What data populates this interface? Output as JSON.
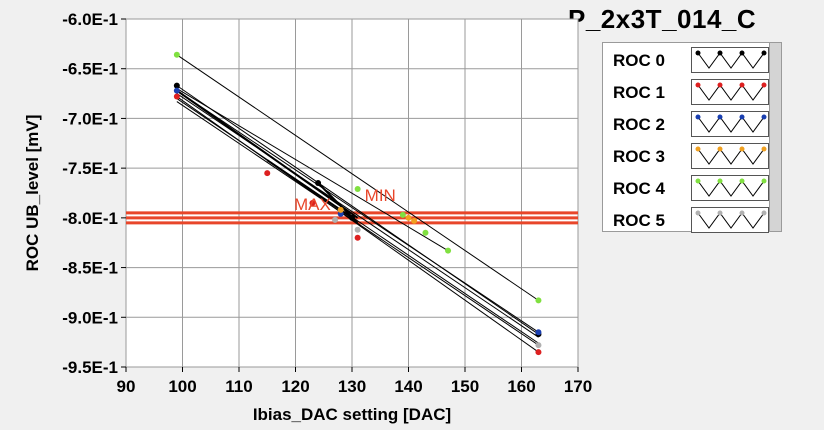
{
  "chart_data": {
    "type": "scatter",
    "title": "P_2x3T_014_C",
    "xlabel": "Ibias_DAC setting [DAC]",
    "ylabel": "ROC UB_level [mV]",
    "xlim": [
      90,
      170
    ],
    "ylim": [
      -0.95,
      -0.6
    ],
    "x_ticks": [
      90,
      100,
      110,
      120,
      130,
      140,
      150,
      160,
      170
    ],
    "x_tick_labels": [
      "90",
      "100",
      "110",
      "120",
      "130",
      "140",
      "150",
      "160",
      "170"
    ],
    "y_ticks": [
      -0.6,
      -0.65,
      -0.7,
      -0.75,
      -0.8,
      -0.85,
      -0.9,
      -0.95
    ],
    "y_tick_labels": [
      "-6.0E-1",
      "-6.5E-1",
      "-7.0E-1",
      "-7.5E-1",
      "-8.0E-1",
      "-8.5E-1",
      "-9.0E-1",
      "-9.5E-1"
    ],
    "grid": true,
    "legend_position": "right",
    "reference_lines": [
      {
        "y": -0.795,
        "color": "#e8462a"
      },
      {
        "y": -0.8,
        "color": "#e8462a"
      },
      {
        "y": -0.805,
        "color": "#e8462a"
      }
    ],
    "annotations": [
      {
        "text": "MAX",
        "x": 123,
        "y": -0.792
      },
      {
        "text": "MIN",
        "x": 135,
        "y": -0.783
      }
    ],
    "series": [
      {
        "name": "ROC 0",
        "color": "#000000",
        "points": [
          [
            99,
            -0.667
          ],
          [
            124,
            -0.765
          ],
          [
            130,
            -0.8
          ],
          [
            163,
            -0.917
          ]
        ],
        "segments": [
          [
            [
              99,
              -0.667
            ],
            [
              163,
              -0.917
            ]
          ],
          [
            [
              99,
              -0.675
            ],
            [
              163,
              -0.92
            ]
          ],
          [
            [
              99,
              -0.68
            ],
            [
              163,
              -0.926
            ]
          ]
        ]
      },
      {
        "name": "ROC 1",
        "color": "#dd2020",
        "points": [
          [
            99,
            -0.678
          ],
          [
            115,
            -0.755
          ],
          [
            123,
            -0.785
          ],
          [
            131,
            -0.82
          ],
          [
            163,
            -0.935
          ]
        ],
        "segments": [
          [
            [
              99,
              -0.678
            ],
            [
              163,
              -0.935
            ]
          ]
        ]
      },
      {
        "name": "ROC 2",
        "color": "#1a3fb0",
        "points": [
          [
            99,
            -0.672
          ],
          [
            128,
            -0.796
          ],
          [
            163,
            -0.915
          ]
        ],
        "segments": [
          [
            [
              99,
              -0.672
            ],
            [
              163,
              -0.915
            ]
          ]
        ]
      },
      {
        "name": "ROC 3",
        "color": "#f0a020",
        "points": [
          [
            128,
            -0.792
          ],
          [
            140,
            -0.8
          ],
          [
            141,
            -0.803
          ]
        ],
        "segments": []
      },
      {
        "name": "ROC 4",
        "color": "#80e040",
        "points": [
          [
            99,
            -0.636
          ],
          [
            131,
            -0.771
          ],
          [
            139,
            -0.797
          ],
          [
            143,
            -0.815
          ],
          [
            147,
            -0.833
          ],
          [
            163,
            -0.883
          ]
        ],
        "segments": [
          [
            [
              99,
              -0.636
            ],
            [
              163,
              -0.883
            ]
          ],
          [
            [
              99,
              -0.67
            ],
            [
              147,
              -0.833
            ]
          ]
        ]
      },
      {
        "name": "ROC 5",
        "color": "#b0b0b0",
        "points": [
          [
            127,
            -0.802
          ],
          [
            131,
            -0.812
          ],
          [
            163,
            -0.928
          ]
        ],
        "segments": [
          [
            [
              99,
              -0.683
            ],
            [
              163,
              -0.928
            ]
          ]
        ]
      }
    ]
  }
}
